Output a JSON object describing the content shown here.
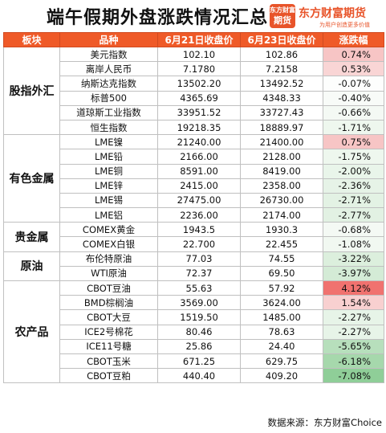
{
  "header": {
    "title": "端午假期外盘涨跌情况汇总",
    "logo_top": "东方财富",
    "logo_bottom": "期货",
    "brand": "东方财富期货",
    "slogan": "为用户创造更多价值"
  },
  "table": {
    "columns": [
      "板块",
      "品种",
      "6月21日收盘价",
      "6月23日收盘价",
      "涨跌幅"
    ],
    "groups": [
      {
        "sector": "股指外汇",
        "rows": [
          {
            "name": "美元指数",
            "p1": "102.10",
            "p2": "102.86",
            "chg": "0.74%",
            "color": "#f7c5c5"
          },
          {
            "name": "离岸人民币",
            "p1": "7.1780",
            "p2": "7.2158",
            "chg": "0.53%",
            "color": "#f9d5d5"
          },
          {
            "name": "纳斯达克指数",
            "p1": "13502.20",
            "p2": "13492.52",
            "chg": "-0.07%",
            "color": "#fdfefd"
          },
          {
            "name": "标普500",
            "p1": "4365.69",
            "p2": "4348.33",
            "chg": "-0.40%",
            "color": "#f8fbf8"
          },
          {
            "name": "道琼斯工业指数",
            "p1": "33951.52",
            "p2": "33727.43",
            "chg": "-0.66%",
            "color": "#f4f9f4"
          },
          {
            "name": "恒生指数",
            "p1": "19218.35",
            "p2": "18889.97",
            "chg": "-1.71%",
            "color": "#eef7ee"
          }
        ]
      },
      {
        "sector": "有色金属",
        "rows": [
          {
            "name": "LME镍",
            "p1": "21240.00",
            "p2": "21400.00",
            "chg": "0.75%",
            "color": "#f7c5c5"
          },
          {
            "name": "LME铅",
            "p1": "2166.00",
            "p2": "2128.00",
            "chg": "-1.75%",
            "color": "#eef7ee"
          },
          {
            "name": "LME铜",
            "p1": "8591.00",
            "p2": "8419.00",
            "chg": "-2.00%",
            "color": "#e9f5ea"
          },
          {
            "name": "LME锌",
            "p1": "2415.00",
            "p2": "2358.00",
            "chg": "-2.36%",
            "color": "#e6f3e7"
          },
          {
            "name": "LME锡",
            "p1": "27475.00",
            "p2": "26730.00",
            "chg": "-2.71%",
            "color": "#e3f2e4"
          },
          {
            "name": "LME铝",
            "p1": "2236.00",
            "p2": "2174.00",
            "chg": "-2.77%",
            "color": "#e2f1e3"
          }
        ]
      },
      {
        "sector": "贵金属",
        "rows": [
          {
            "name": "COMEX黄金",
            "p1": "1943.5",
            "p2": "1930.3",
            "chg": "-0.68%",
            "color": "#f4f9f4"
          },
          {
            "name": "COMEX白银",
            "p1": "22.700",
            "p2": "22.455",
            "chg": "-1.08%",
            "color": "#f1f8f1"
          }
        ]
      },
      {
        "sector": "原油",
        "rows": [
          {
            "name": "布伦特原油",
            "p1": "77.03",
            "p2": "74.55",
            "chg": "-3.22%",
            "color": "#dcefdd"
          },
          {
            "name": "WTI原油",
            "p1": "72.37",
            "p2": "69.50",
            "chg": "-3.97%",
            "color": "#d4ebd6"
          }
        ]
      },
      {
        "sector": "农产品",
        "rows": [
          {
            "name": "CBOT豆油",
            "p1": "55.63",
            "p2": "57.92",
            "chg": "4.12%",
            "color": "#f0726f"
          },
          {
            "name": "BMD棕榈油",
            "p1": "3569.00",
            "p2": "3624.00",
            "chg": "1.54%",
            "color": "#f8d0d0"
          },
          {
            "name": "CBOT大豆",
            "p1": "1519.50",
            "p2": "1485.00",
            "chg": "-2.27%",
            "color": "#e7f4e8"
          },
          {
            "name": "ICE2号棉花",
            "p1": "80.46",
            "p2": "78.63",
            "chg": "-2.27%",
            "color": "#e7f4e8"
          },
          {
            "name": "ICE11号糖",
            "p1": "25.86",
            "p2": "24.40",
            "chg": "-5.65%",
            "color": "#b7dfbc"
          },
          {
            "name": "CBOT玉米",
            "p1": "671.25",
            "p2": "629.75",
            "chg": "-6.18%",
            "color": "#a6d8ac"
          },
          {
            "name": "CBOT豆粕",
            "p1": "440.40",
            "p2": "409.20",
            "chg": "-7.08%",
            "color": "#8fce98"
          }
        ]
      }
    ]
  },
  "footer": {
    "source": "数据来源：东方财富Choice"
  }
}
